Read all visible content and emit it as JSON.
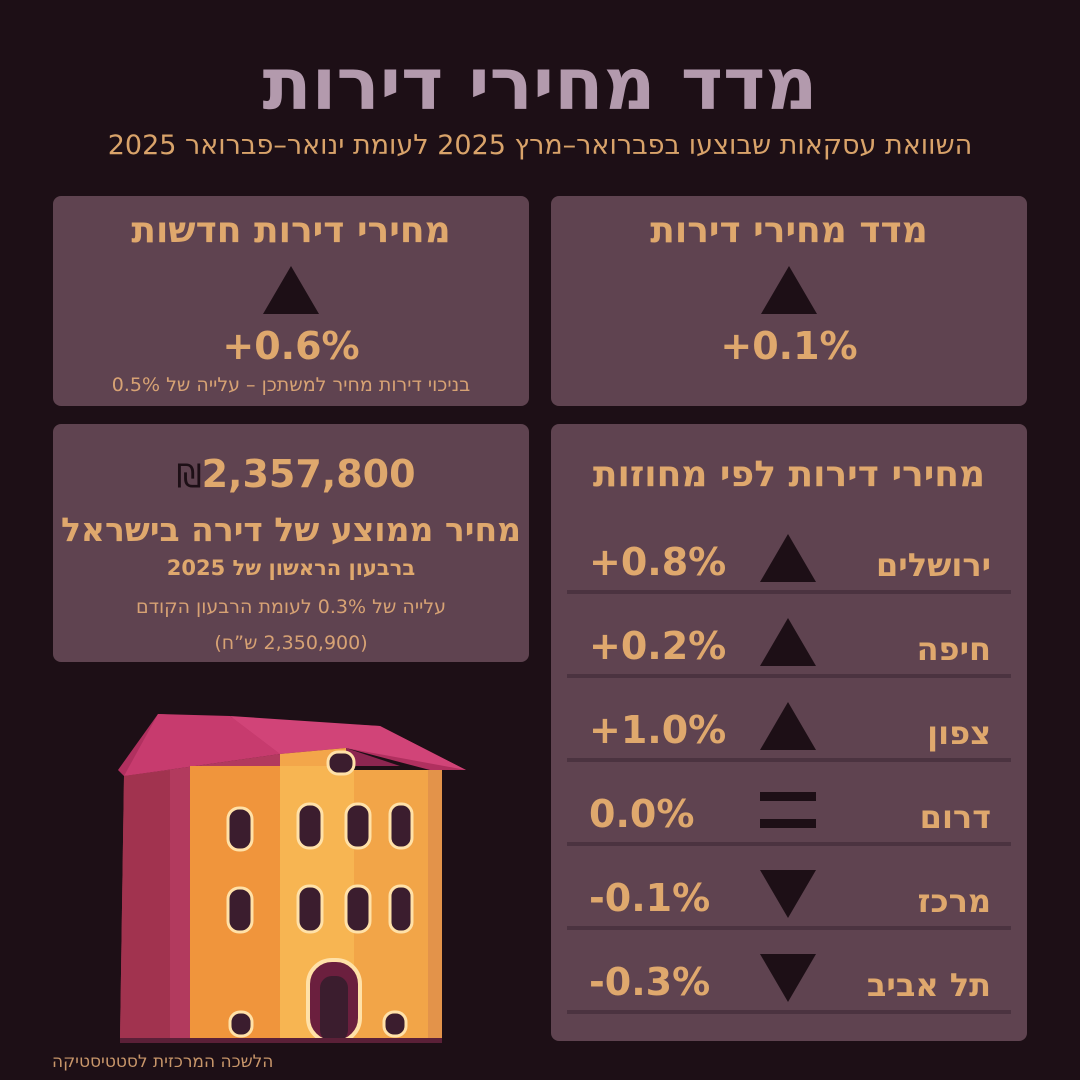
{
  "header": {
    "title": "מדד מחירי דירות",
    "subtitle": "השוואת עסקאות שבוצעו בפברואר–מרץ 2025 לעומת ינואר–פברואר 2025"
  },
  "cards": {
    "index": {
      "title": "מדד מחירי דירות",
      "change": "+0.1%",
      "direction": "up"
    },
    "new_apartments": {
      "title": "מחירי דירות חדשות",
      "change": "+0.6%",
      "direction": "up",
      "note": "בניכוי דירות מחיר למשתכן – עלייה של 0.5%"
    },
    "average_price": {
      "amount": "2,357,800",
      "currency_symbol": "₪",
      "title": "מחיר ממוצע של דירה בישראל",
      "period": "ברבעון הראשון של 2025",
      "change_note": "עלייה של 0.3% לעומת הרבעון הקודם",
      "previous": "(2,350,900 ש”ח)"
    },
    "districts": {
      "title": "מחירי דירות לפי מחוזות",
      "rows": [
        {
          "name": "ירושלים",
          "change": "+0.8%",
          "direction": "up"
        },
        {
          "name": "חיפה",
          "change": "+0.2%",
          "direction": "up"
        },
        {
          "name": "צפון",
          "change": "+1.0%",
          "direction": "up"
        },
        {
          "name": "דרום",
          "change": "0.0%",
          "direction": "equal"
        },
        {
          "name": "מרכז",
          "change": "-0.1%",
          "direction": "down"
        },
        {
          "name": "תל אביב",
          "change": "-0.3%",
          "direction": "down"
        }
      ]
    }
  },
  "illustration": {
    "icon": "apartment-building-icon"
  },
  "footer": {
    "source": "הלשכה המרכזית לסטטיסטיקה"
  },
  "colors": {
    "background": "#1d0f16",
    "card": "#5f4350",
    "accent": "#dfa86d",
    "title": "#b39aad"
  }
}
